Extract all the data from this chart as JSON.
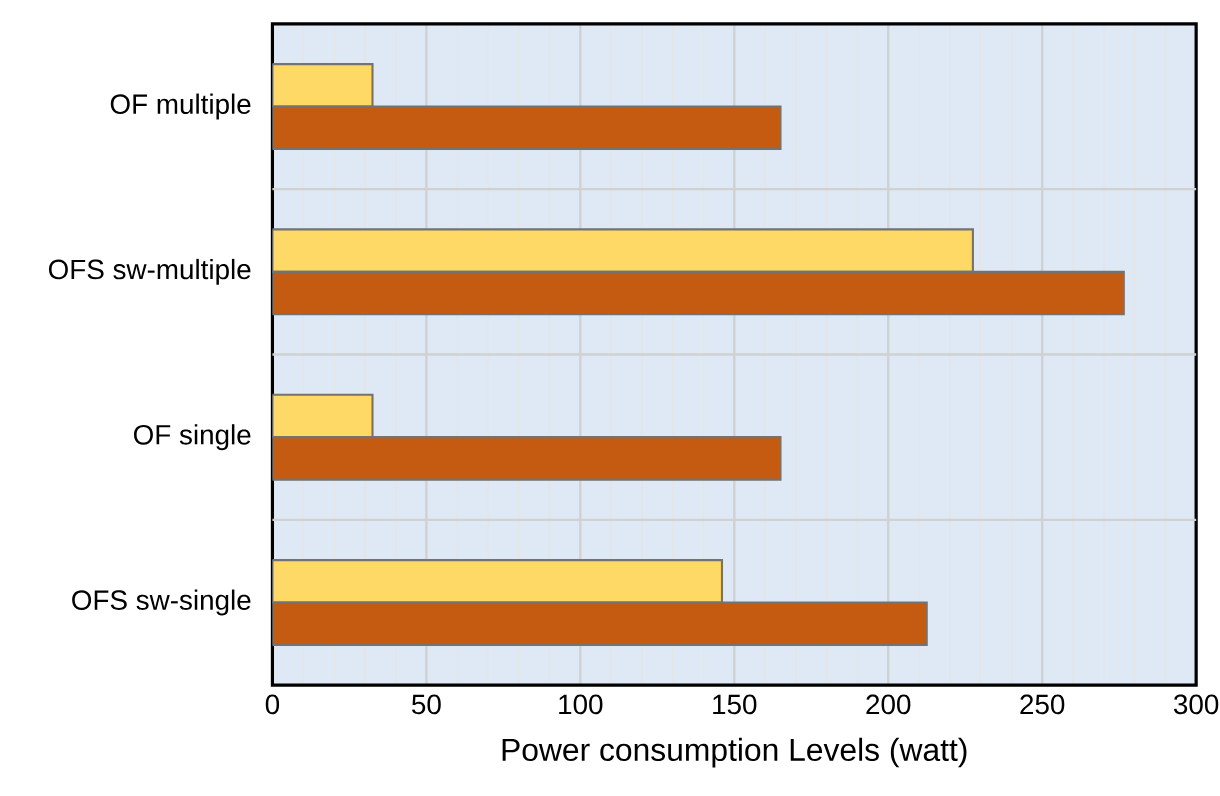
{
  "chart_data": {
    "type": "bar",
    "orientation": "horizontal",
    "xlabel": "Power consumption Levels (watt)",
    "categories": [
      "OF multiple",
      "OFS sw-multiple",
      "OF single",
      "OFS sw-single"
    ],
    "series": [
      {
        "color": "#ffd966",
        "values": [
          32.5,
          227.5,
          32.5,
          146
        ]
      },
      {
        "color": "#c55a11",
        "values": [
          165,
          276.5,
          165,
          212.5
        ]
      }
    ],
    "xlim": [
      0,
      300
    ],
    "xticks": [
      0,
      50,
      100,
      150,
      200,
      250,
      300
    ],
    "grid": true
  }
}
